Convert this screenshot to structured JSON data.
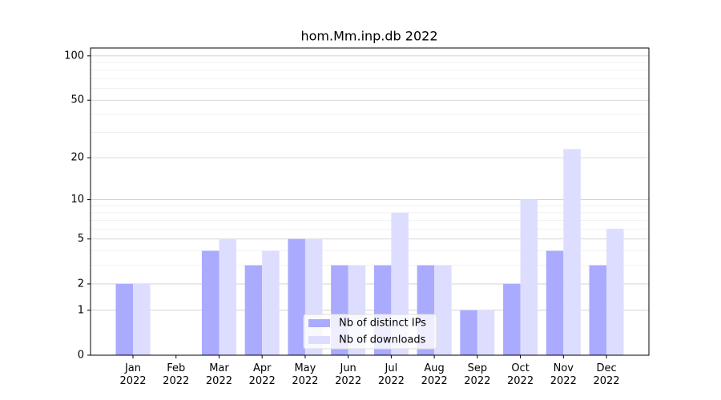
{
  "chart_data": {
    "type": "bar",
    "title": "hom.Mm.inp.db 2022",
    "categories": [
      "Jan\n2022",
      "Feb\n2022",
      "Mar\n2022",
      "Apr\n2022",
      "May\n2022",
      "Jun\n2022",
      "Jul\n2022",
      "Aug\n2022",
      "Sep\n2022",
      "Oct\n2022",
      "Nov\n2022",
      "Dec\n2022"
    ],
    "series": [
      {
        "name": "Nb of distinct IPs",
        "color": "#aaaaff",
        "values": [
          2,
          0,
          4,
          3,
          5,
          3,
          3,
          3,
          1,
          2,
          4,
          3
        ]
      },
      {
        "name": "Nb of downloads",
        "color": "#ddddff",
        "values": [
          2,
          0,
          5,
          4,
          5,
          3,
          8,
          3,
          1,
          10,
          23,
          6
        ]
      }
    ],
    "yscale": "log1p",
    "ylim": [
      0,
      113
    ],
    "yticks": [
      0,
      1,
      2,
      5,
      10,
      20,
      50,
      100
    ],
    "y_minor_ticks": [
      3,
      4,
      6,
      7,
      8,
      9,
      30,
      40,
      60,
      70,
      80,
      90
    ],
    "grid": true,
    "legend": "lower center"
  }
}
